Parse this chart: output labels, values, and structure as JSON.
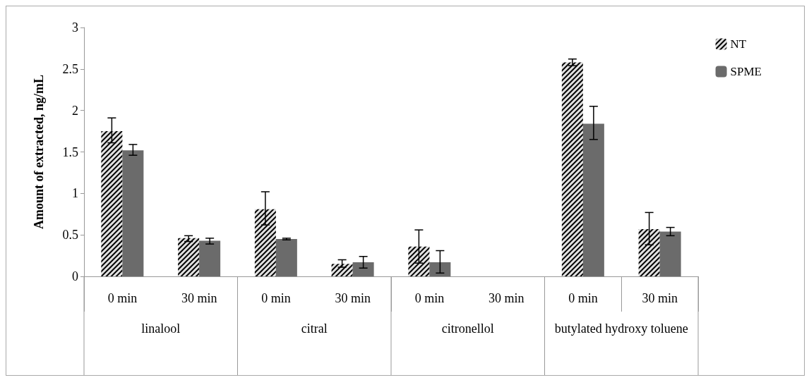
{
  "chart_data": {
    "type": "bar",
    "ylabel": "Amount of extracted, ng/mL",
    "categories": [
      "0 min",
      "30 min",
      "0 min",
      "30 min",
      "0 min",
      "30 min",
      "0 min",
      "30 min"
    ],
    "annotations": [
      "linalool",
      "citral",
      "citronellol",
      "butylated hydroxy toluene"
    ],
    "series": [
      {
        "name": "NT",
        "color": "#e0e0e0",
        "values": [
          1.75,
          0.46,
          0.81,
          0.15,
          0.36,
          0,
          2.58,
          0.57
        ],
        "errors": [
          [
            1.61,
            1.91
          ],
          [
            0.42,
            0.49
          ],
          [
            0.62,
            1.02
          ],
          [
            0.11,
            0.2
          ],
          [
            0.16,
            0.56
          ],
          null,
          [
            2.54,
            2.62
          ],
          [
            0.38,
            0.77
          ]
        ]
      },
      {
        "name": "SPME",
        "color": "#6b6b6b",
        "values": [
          1.52,
          0.43,
          0.45,
          0.17,
          0.17,
          0,
          1.84,
          0.54
        ],
        "errors": [
          [
            1.46,
            1.59
          ],
          [
            0.39,
            0.46
          ],
          [
            0.44,
            0.46
          ],
          [
            0.1,
            0.24
          ],
          [
            0.04,
            0.31
          ],
          null,
          [
            1.65,
            2.05
          ],
          [
            0.49,
            0.59
          ]
        ]
      }
    ],
    "ylim": [
      0,
      3
    ],
    "yticks": [
      0,
      0.5,
      1,
      1.5,
      2,
      2.5,
      3
    ],
    "grid": false,
    "legend": "top right"
  }
}
